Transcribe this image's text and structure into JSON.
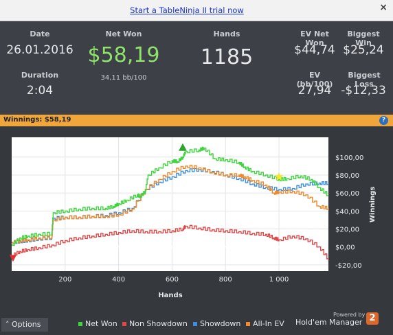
{
  "banner": {
    "link_text": "Start a TableNinja II trial now",
    "close_glyph": "×"
  },
  "stats": {
    "date_label": "Date",
    "date_value": "26.01.2016",
    "duration_label": "Duration",
    "duration_value": "2:04",
    "net_won_label": "Net Won",
    "net_won_value": "$58,19",
    "net_won_sub": "34,11 bb/100",
    "hands_label": "Hands",
    "hands_value": "1185",
    "ev_net_won_label": "EV Net Won",
    "ev_net_won_value": "$44,74",
    "biggest_win_label": "Biggest Win",
    "biggest_win_value": "$25,24",
    "ev_bb_label": "EV (bb/100)",
    "ev_bb_value": "27,94",
    "biggest_loss_label": "Biggest Loss",
    "biggest_loss_value": "-$12,33"
  },
  "winnings_bar": {
    "text": "Winnings: $58,19",
    "help_glyph": "?"
  },
  "footer": {
    "options_label": "Options",
    "powered_by": "Powered by",
    "brand": "Hold'em Manager",
    "brand_badge": "2"
  },
  "colors": {
    "net_won": "#3dd43d",
    "non_showdown": "#e04848",
    "showdown": "#3b8fe0",
    "all_in_ev": "#f08a2a"
  },
  "chart_data": {
    "type": "line",
    "xlabel": "Hands",
    "ylabel": "Winnings",
    "xlim": [
      0,
      1185
    ],
    "ylim": [
      -27,
      122
    ],
    "x_ticks": [
      200,
      400,
      600,
      800,
      1000
    ],
    "x_tick_labels": [
      "200",
      "400",
      "600",
      "800",
      "1 000"
    ],
    "y_ticks": [
      -20,
      0,
      20,
      40,
      60,
      80,
      100
    ],
    "y_tick_labels": [
      "-$20,00",
      "$0,00",
      "$20,00",
      "$40,00",
      "$60,00",
      "$80,00",
      "$100,00"
    ],
    "legend": "bottom",
    "series": [
      {
        "name": "Net Won",
        "color": "#3dd43d",
        "x": [
          0,
          30,
          60,
          100,
          150,
          155,
          200,
          250,
          300,
          350,
          380,
          400,
          430,
          470,
          480,
          500,
          510,
          550,
          600,
          620,
          640,
          650,
          700,
          720,
          760,
          800,
          850,
          870,
          900,
          950,
          1000,
          1030,
          1080,
          1120,
          1150,
          1185
        ],
        "y": [
          2,
          10,
          12,
          14,
          15,
          38,
          40,
          42,
          43,
          43,
          45,
          48,
          52,
          58,
          56,
          62,
          80,
          88,
          96,
          95,
          100,
          106,
          108,
          110,
          98,
          97,
          94,
          89,
          84,
          80,
          75,
          76,
          79,
          75,
          66,
          57
        ]
      },
      {
        "name": "Non Showdown",
        "color": "#e04848",
        "x": [
          0,
          30,
          60,
          100,
          150,
          200,
          250,
          300,
          350,
          400,
          450,
          500,
          550,
          600,
          640,
          650,
          700,
          750,
          800,
          850,
          900,
          950,
          980,
          1000,
          1050,
          1100,
          1150,
          1185
        ],
        "y": [
          -10,
          -5,
          -3,
          -1,
          2,
          7,
          10,
          12,
          14,
          16,
          18,
          17,
          17,
          18,
          20,
          23,
          21,
          19,
          18,
          17,
          15,
          14,
          10,
          8,
          12,
          9,
          0,
          -14
        ]
      },
      {
        "name": "Showdown",
        "color": "#3b8fe0",
        "x": [
          0,
          30,
          60,
          100,
          150,
          155,
          200,
          250,
          300,
          350,
          400,
          450,
          500,
          550,
          600,
          650,
          700,
          750,
          800,
          850,
          900,
          950,
          1000,
          1050,
          1100,
          1150,
          1185
        ],
        "y": [
          5,
          6,
          7,
          9,
          10,
          32,
          33,
          33,
          34,
          35,
          38,
          43,
          64,
          72,
          78,
          85,
          86,
          84,
          80,
          76,
          70,
          66,
          64,
          65,
          70,
          71,
          71
        ]
      },
      {
        "name": "All-In EV",
        "color": "#f08a2a",
        "x": [
          0,
          30,
          60,
          100,
          150,
          155,
          200,
          250,
          300,
          350,
          400,
          450,
          500,
          550,
          600,
          650,
          700,
          750,
          800,
          850,
          870,
          900,
          950,
          980,
          1000,
          1050,
          1100,
          1150,
          1185
        ],
        "y": [
          5,
          7,
          8,
          10,
          11,
          30,
          33,
          33,
          34,
          34,
          36,
          42,
          64,
          75,
          84,
          90,
          88,
          83,
          80,
          80,
          78,
          74,
          69,
          60,
          61,
          62,
          58,
          45,
          43
        ]
      }
    ],
    "markers": [
      {
        "type": "up-triangle",
        "x": 640,
        "y": 110,
        "color": "#2ea52e"
      },
      {
        "type": "down-triangle",
        "x": 5,
        "y": -12,
        "color": "#e03030"
      },
      {
        "type": "star",
        "x": 1000,
        "y": 78,
        "color": "#f5e72b"
      }
    ]
  }
}
